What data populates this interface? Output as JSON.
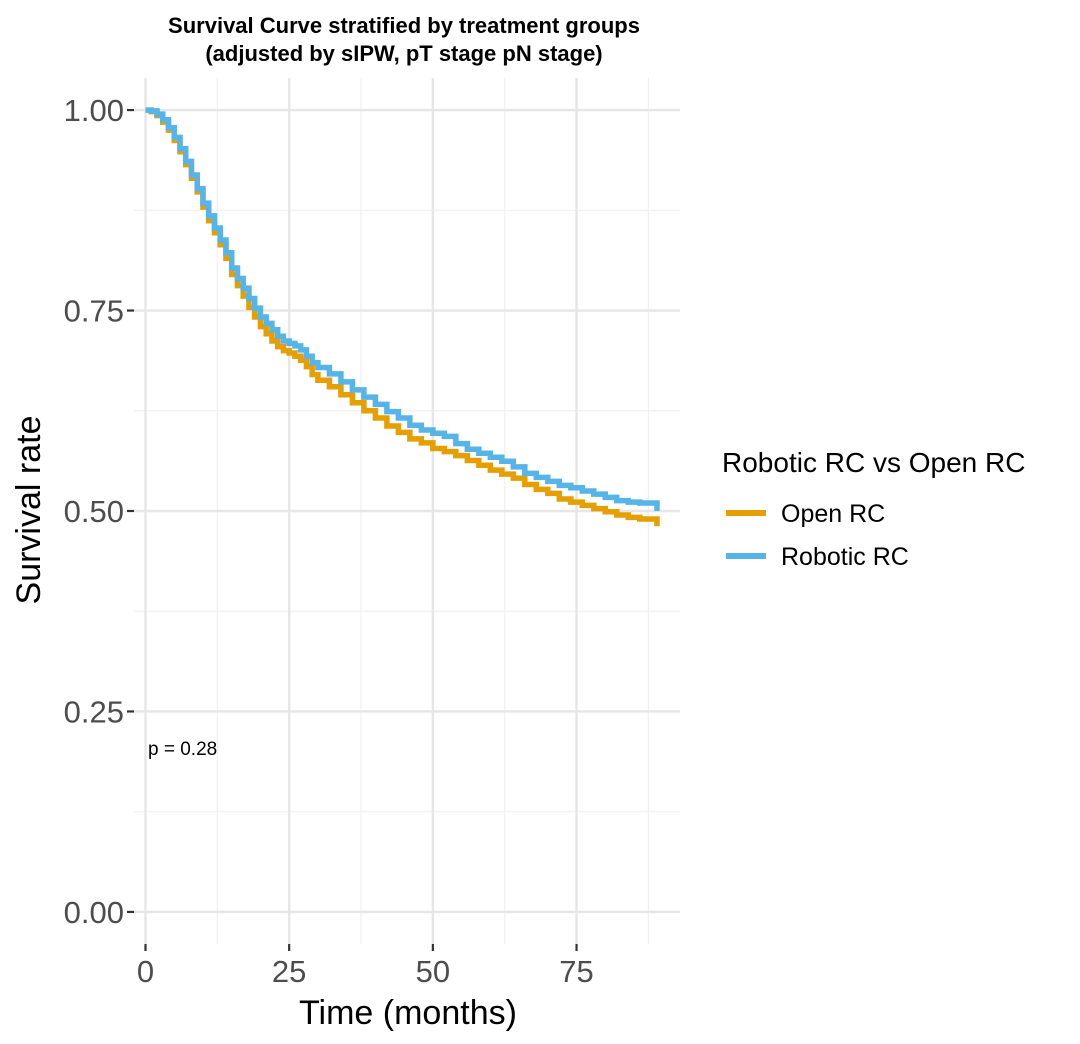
{
  "chart_data": {
    "type": "line",
    "title_line1": "Survival Curve stratified by treatment groups",
    "title_line2": "(adjusted by sIPW, pT stage pN stage)",
    "xlabel": "Time (months)",
    "ylabel": "Survival rate",
    "xlim": [
      -2,
      93
    ],
    "ylim": [
      -0.04,
      1.04
    ],
    "xticks": [
      0,
      25,
      50,
      75
    ],
    "xtick_labels": [
      "0",
      "25",
      "50",
      "75"
    ],
    "yticks": [
      0.0,
      0.25,
      0.5,
      0.75,
      1.0
    ],
    "ytick_labels": [
      "0.00",
      "0.25",
      "0.50",
      "0.75",
      "1.00"
    ],
    "grid": true,
    "legend": {
      "title": "Robotic RC vs Open RC",
      "position": "right",
      "entries": [
        "Open RC",
        "Robotic RC"
      ]
    },
    "annotation": "p = 0.28",
    "annotation_position": {
      "x": -2,
      "y": 0.2
    },
    "series": [
      {
        "name": "Open RC",
        "color": "#E69F00",
        "x": [
          0,
          1,
          2,
          3,
          4,
          5,
          6,
          7,
          8,
          9,
          10,
          11,
          12,
          13,
          14,
          15,
          16,
          17,
          18,
          19,
          20,
          21,
          22,
          23,
          24,
          25,
          26,
          27,
          28,
          29,
          30,
          32,
          34,
          36,
          38,
          40,
          42,
          44,
          46,
          48,
          50,
          52,
          54,
          56,
          58,
          60,
          62,
          64,
          66,
          68,
          70,
          72,
          74,
          76,
          78,
          80,
          82,
          84,
          86,
          88,
          89,
          89
        ],
        "y": [
          1.0,
          0.998,
          0.993,
          0.985,
          0.975,
          0.962,
          0.948,
          0.932,
          0.915,
          0.898,
          0.879,
          0.862,
          0.847,
          0.832,
          0.815,
          0.795,
          0.781,
          0.768,
          0.754,
          0.742,
          0.73,
          0.721,
          0.712,
          0.705,
          0.7,
          0.697,
          0.693,
          0.688,
          0.68,
          0.67,
          0.663,
          0.655,
          0.645,
          0.635,
          0.625,
          0.616,
          0.606,
          0.598,
          0.59,
          0.585,
          0.578,
          0.574,
          0.569,
          0.563,
          0.557,
          0.551,
          0.546,
          0.541,
          0.533,
          0.527,
          0.522,
          0.515,
          0.511,
          0.507,
          0.503,
          0.499,
          0.495,
          0.492,
          0.49,
          0.49,
          0.49,
          0.481
        ]
      },
      {
        "name": "Robotic RC",
        "color": "#56B4E9",
        "x": [
          0,
          1,
          2,
          3,
          4,
          5,
          6,
          7,
          8,
          9,
          10,
          11,
          12,
          13,
          14,
          15,
          16,
          17,
          18,
          19,
          20,
          21,
          22,
          23,
          24,
          25,
          26,
          27,
          28,
          29,
          30,
          32,
          34,
          36,
          38,
          40,
          42,
          44,
          46,
          48,
          50,
          52,
          54,
          56,
          58,
          60,
          62,
          64,
          66,
          68,
          70,
          72,
          74,
          76,
          78,
          80,
          82,
          84,
          86,
          88,
          89,
          89
        ],
        "y": [
          1.0,
          0.999,
          0.995,
          0.988,
          0.978,
          0.966,
          0.952,
          0.936,
          0.919,
          0.902,
          0.884,
          0.868,
          0.853,
          0.838,
          0.822,
          0.803,
          0.79,
          0.778,
          0.765,
          0.753,
          0.742,
          0.734,
          0.726,
          0.718,
          0.712,
          0.709,
          0.706,
          0.701,
          0.693,
          0.685,
          0.679,
          0.671,
          0.661,
          0.651,
          0.642,
          0.633,
          0.624,
          0.616,
          0.607,
          0.601,
          0.597,
          0.593,
          0.584,
          0.577,
          0.572,
          0.567,
          0.562,
          0.555,
          0.547,
          0.542,
          0.537,
          0.532,
          0.529,
          0.525,
          0.521,
          0.517,
          0.513,
          0.511,
          0.51,
          0.51,
          0.51,
          0.5
        ]
      }
    ]
  }
}
